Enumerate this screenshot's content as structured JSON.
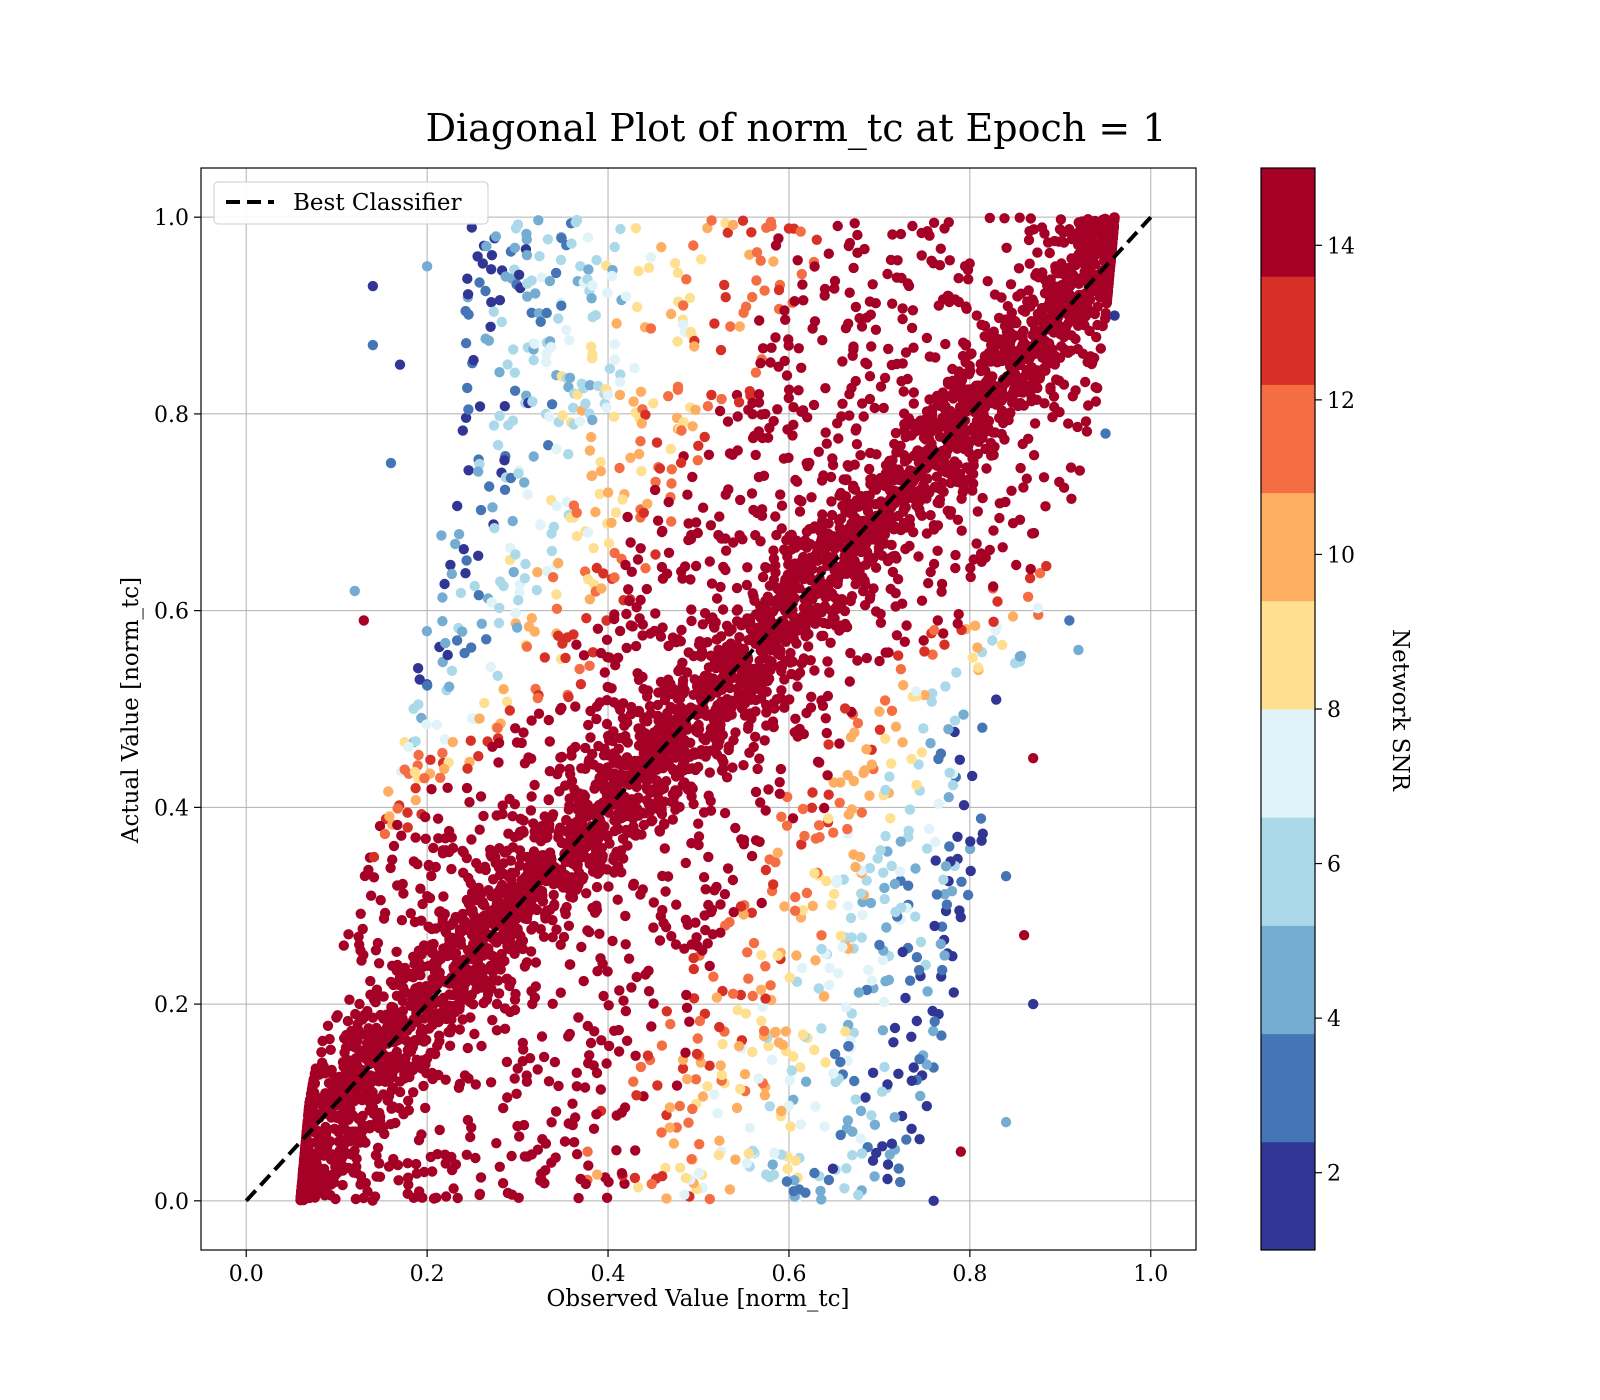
{
  "chart_data": {
    "type": "scatter",
    "title": "Diagonal Plot of norm_tc at Epoch = 1",
    "xlabel": "Observed Value [norm_tc]",
    "ylabel": "Actual Value [norm_tc]",
    "xlim": [
      -0.05,
      1.05
    ],
    "ylim": [
      -0.05,
      1.05
    ],
    "xticks": [
      "0.0",
      "0.2",
      "0.4",
      "0.6",
      "0.8",
      "1.0"
    ],
    "yticks": [
      "0.0",
      "0.2",
      "0.4",
      "0.6",
      "0.8",
      "1.0"
    ],
    "xtick_values": [
      0.0,
      0.2,
      0.4,
      0.6,
      0.8,
      1.0
    ],
    "ytick_values": [
      0.0,
      0.2,
      0.4,
      0.6,
      0.8,
      1.0
    ],
    "grid": true,
    "legend_position": "top-left",
    "reference_line": {
      "name": "Best Classifier",
      "x": [
        0.0,
        1.0
      ],
      "y": [
        0.0,
        1.0
      ],
      "style": "dashed",
      "color": "#000000"
    },
    "series": [
      {
        "description": "Dense scatter of predictions colored by Network SNR; high-SNR points cluster tightly along the diagonal band (offset about ±0.15), low-SNR points spread to the upper-left and lower-right edges.",
        "band_left_edge": [
          [
            0.06,
            0.0
          ],
          [
            0.07,
            0.1
          ],
          [
            0.09,
            0.2
          ],
          [
            0.12,
            0.3
          ],
          [
            0.15,
            0.4
          ],
          [
            0.18,
            0.5
          ],
          [
            0.2,
            0.6
          ],
          [
            0.22,
            0.7
          ],
          [
            0.24,
            0.8
          ],
          [
            0.24,
            0.9
          ],
          [
            0.25,
            1.0
          ]
        ],
        "band_right_edge": [
          [
            0.72,
            0.0
          ],
          [
            0.76,
            0.1
          ],
          [
            0.78,
            0.2
          ],
          [
            0.8,
            0.3
          ],
          [
            0.82,
            0.4
          ],
          [
            0.84,
            0.5
          ],
          [
            0.88,
            0.6
          ],
          [
            0.91,
            0.7
          ],
          [
            0.94,
            0.8
          ],
          [
            0.95,
            0.9
          ],
          [
            0.96,
            1.0
          ]
        ],
        "outliers": [
          [
            0.14,
            0.93
          ],
          [
            0.14,
            0.87
          ],
          [
            0.12,
            0.62
          ],
          [
            0.13,
            0.59
          ],
          [
            0.17,
            0.85
          ],
          [
            0.16,
            0.75
          ],
          [
            0.2,
            0.95
          ],
          [
            0.86,
            0.27
          ],
          [
            0.87,
            0.2
          ],
          [
            0.84,
            0.33
          ],
          [
            0.84,
            0.08
          ],
          [
            0.79,
            0.05
          ],
          [
            0.76,
            0.0
          ],
          [
            0.91,
            0.59
          ],
          [
            0.92,
            0.56
          ],
          [
            0.87,
            0.45
          ],
          [
            0.96,
            0.9
          ],
          [
            0.95,
            0.78
          ]
        ]
      }
    ],
    "colorbar": {
      "label": "Network SNR",
      "min": 1,
      "max": 15,
      "levels": 10,
      "ticks": [
        "2",
        "4",
        "6",
        "8",
        "10",
        "12",
        "14"
      ],
      "tick_values": [
        2,
        4,
        6,
        8,
        10,
        12,
        14
      ],
      "colors": [
        "#313695",
        "#4575b4",
        "#74add1",
        "#abd9e9",
        "#e0f3f8",
        "#fee090",
        "#fdae61",
        "#f46d43",
        "#d73027",
        "#a50026"
      ]
    }
  }
}
